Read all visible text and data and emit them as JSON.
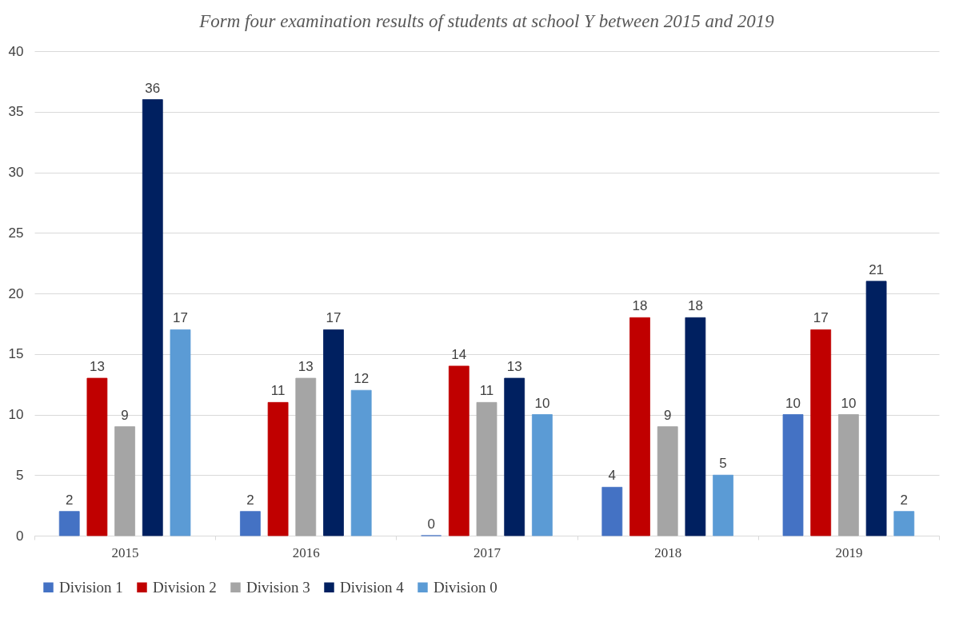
{
  "chart_data": {
    "type": "bar",
    "title": "Form four examination results of students at school Y between 2015 and 2019",
    "categories": [
      "2015",
      "2016",
      "2017",
      "2018",
      "2019"
    ],
    "series": [
      {
        "name": "Division 1",
        "color": "#4472c4",
        "values": [
          2,
          2,
          0,
          4,
          10
        ]
      },
      {
        "name": "Division 2",
        "color": "#c00000",
        "values": [
          13,
          11,
          14,
          18,
          17
        ]
      },
      {
        "name": "Division 3",
        "color": "#a5a5a5",
        "values": [
          9,
          13,
          11,
          9,
          10
        ]
      },
      {
        "name": "Division 4",
        "color": "#002060",
        "values": [
          36,
          17,
          13,
          18,
          21
        ]
      },
      {
        "name": "Division 0",
        "color": "#5b9bd5",
        "values": [
          17,
          12,
          10,
          5,
          2
        ]
      }
    ],
    "ylim": [
      0,
      40
    ],
    "yticks": [
      0,
      5,
      10,
      15,
      20,
      25,
      30,
      35,
      40
    ],
    "grid": "y",
    "legend": "bottom",
    "data_labels": true
  }
}
